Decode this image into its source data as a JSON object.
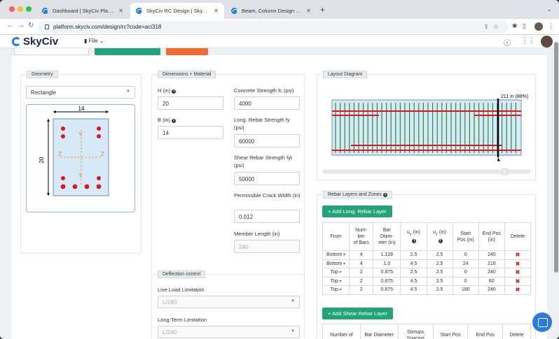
{
  "browser": {
    "tabs": [
      {
        "title": "Dashboard | SkyCiv Platform"
      },
      {
        "title": "SkyCiv RC Design | SkyCiv Platform"
      },
      {
        "title": "Beam, Column Design – Standa"
      }
    ],
    "url": "platform.skyciv.com/design/rc?code=aci318"
  },
  "app": {
    "logo": "SkyCiv",
    "file_menu": "File"
  },
  "geometry": {
    "title": "Geometry",
    "shape": "Rectangle",
    "width_dim": "14",
    "height_dim": "20",
    "axis_y": "Y",
    "axis_z": "Z"
  },
  "dimensions": {
    "title": "Dimensions + Material",
    "h_label": "H (in)",
    "h_value": "20",
    "b_label": "B (in)",
    "b_value": "14",
    "fc_label": "Concrete Strength fc (psi)",
    "fc_value": "4000",
    "fy_label": "Long. Rebar Strength fy (psi)",
    "fy_value": "60000",
    "fyt_label": "Shear Rebar Strength fyt (psi)",
    "fyt_value": "50000",
    "crack_label": "Permissible Crack Width (in)",
    "crack_value": "0.012",
    "length_label": "Member Length (in)",
    "length_value": "240"
  },
  "deflection": {
    "title": "Deflection control",
    "live_label": "Live Load Limitation",
    "live_value": "L/180",
    "long_label": "Long-Term Limitation",
    "long_value": "L/240"
  },
  "layout_diagram": {
    "title": "Layout Diagram",
    "cursor_label": "211 in (88%)"
  },
  "rebar": {
    "title": "Rebar Layers and Zones",
    "add_long_button": "+ Add Long. Rebar Layer",
    "long_headers": [
      "From",
      "Number of Bars",
      "Bar Diameter (in)",
      "uy (in)",
      "uz (in)",
      "Start Pos (in)",
      "End Pos (in)",
      "Delete"
    ],
    "long_rows": [
      {
        "from": "Bottom",
        "num": "4",
        "dia": "1.128",
        "uy": "2.5",
        "uz": "2.5",
        "start": "0",
        "end": "240"
      },
      {
        "from": "Bottom",
        "num": "4",
        "dia": "1.0",
        "uy": "4.5",
        "uz": "2.5",
        "start": "24",
        "end": "216"
      },
      {
        "from": "Top",
        "num": "2",
        "dia": "0.875",
        "uy": "2.5",
        "uz": "2.5",
        "start": "0",
        "end": "240"
      },
      {
        "from": "Top",
        "num": "2",
        "dia": "0.875",
        "uy": "4.5",
        "uz": "2.5",
        "start": "0",
        "end": "60"
      },
      {
        "from": "Top",
        "num": "2",
        "dia": "0.875",
        "uy": "4.5",
        "uz": "2.5",
        "start": "180",
        "end": "240"
      }
    ],
    "add_shear_button": "+ Add Shear Rebar Layer",
    "shear_headers": [
      "Number of",
      "Bar Diameter",
      "Stirrups Spacing",
      "Start Pos",
      "End Pos",
      "Delete"
    ]
  },
  "colors": {
    "accent_green": "#22a37a",
    "accent_orange": "#f26a2e",
    "rebar_red": "#e0141e",
    "stirrup_green": "#2f8a3b",
    "section_fill": "#d6e9f7"
  }
}
